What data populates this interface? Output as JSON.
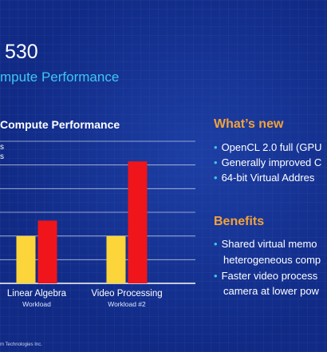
{
  "slide": {
    "title": "530",
    "subtitle": "mpute Performance",
    "copyright": "m Technologies Inc."
  },
  "legend": [
    "s",
    "s"
  ],
  "whats_new": {
    "heading": "What’s new",
    "bullets": [
      "OpenCL 2.0 full (GPU",
      "Generally improved C",
      "64-bit Virtual Addres"
    ]
  },
  "benefits": {
    "heading": "Benefits",
    "bullets": [
      {
        "line1": "Shared virtual memo",
        "line2": "heterogeneous comp"
      },
      {
        "line1": "Faster video process",
        "line2": "camera at lower pow"
      }
    ]
  },
  "colors": {
    "background": "#102a86",
    "accent": "#3ec7f0",
    "heading": "#f2a23a",
    "series_yellow": "#fcd53a",
    "series_red": "#f0151a"
  },
  "chart_data": {
    "type": "bar",
    "title": "Compute Performance",
    "categories": [
      "Linear Algebra",
      "Video Processing"
    ],
    "category_sublabels": [
      "Workload",
      "Workload #2"
    ],
    "series": [
      {
        "values": [
          2,
          2
        ]
      },
      {
        "values": [
          2.65,
          5.15
        ]
      }
    ],
    "ylim": [
      0,
      6
    ],
    "grid": true
  }
}
